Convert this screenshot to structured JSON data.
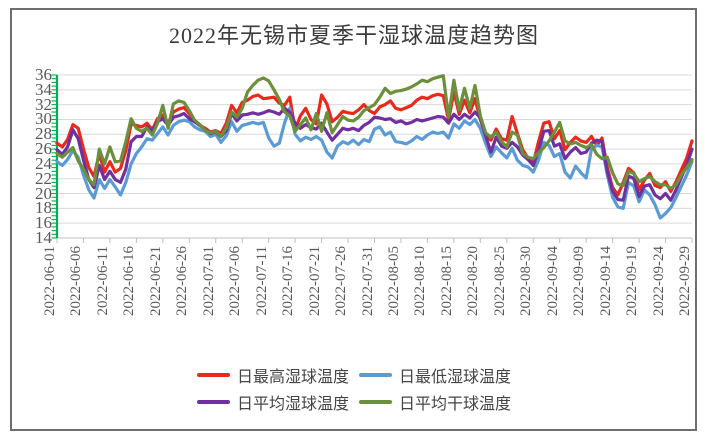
{
  "title": "2022年无锡市夏季干湿球温度趋势图",
  "chart_data": {
    "type": "line",
    "title": "2022年无锡市夏季干湿球温度趋势图",
    "xlabel": "",
    "ylabel": "",
    "ylim": [
      14,
      36
    ],
    "y_ticks": [
      14,
      16,
      18,
      20,
      22,
      24,
      26,
      28,
      30,
      32,
      34,
      36
    ],
    "grid": true,
    "legend_position": "bottom",
    "x_tick_labels": [
      "2022-06-01",
      "2022-06-06",
      "2022-06-11",
      "2022-06-16",
      "2022-06-21",
      "2022-06-26",
      "2022-07-01",
      "2022-07-06",
      "2022-07-11",
      "2022-07-16",
      "2022-07-21",
      "2022-07-26",
      "2022-07-31",
      "2022-08-05",
      "2022-08-10",
      "2022-08-15",
      "2022-08-20",
      "2022-08-25",
      "2022-08-30",
      "2022-09-04",
      "2022-09-09",
      "2022-09-14",
      "2022-09-19",
      "2022-09-24",
      "2022-09-29"
    ],
    "x_tick_step_days": 5,
    "n_points": 121,
    "axis_colors": {
      "y_axis": "#00b050",
      "grid": "#d9d9d9",
      "x_axis": "#bfbfbf",
      "tick_text": "#595959"
    },
    "series": [
      {
        "name": "日最高湿球温度",
        "color": "#e8291c",
        "values": [
          26.8,
          26.3,
          27.3,
          29.3,
          28.8,
          26.0,
          23.5,
          22.3,
          25.4,
          22.9,
          24.3,
          22.9,
          23.4,
          25.8,
          29.4,
          29.2,
          29.0,
          29.5,
          28.6,
          30.1,
          30.6,
          29.5,
          31.0,
          31.4,
          31.6,
          30.8,
          29.7,
          29.2,
          28.8,
          28.3,
          28.5,
          28.1,
          29.5,
          31.9,
          30.9,
          32.3,
          32.6,
          33.1,
          33.3,
          32.8,
          32.9,
          33.0,
          32.2,
          31.9,
          33.0,
          28.6,
          30.5,
          31.5,
          30.0,
          29.4,
          33.3,
          32.1,
          29.7,
          30.3,
          31.1,
          30.9,
          30.8,
          31.3,
          32.0,
          31.2,
          30.8,
          31.7,
          32.0,
          32.5,
          31.5,
          31.3,
          31.6,
          31.9,
          32.6,
          33.0,
          32.8,
          33.2,
          33.4,
          33.2,
          29.9,
          33.7,
          30.7,
          32.6,
          30.9,
          32.8,
          30.0,
          27.9,
          27.2,
          28.7,
          27.4,
          27.2,
          30.4,
          28.1,
          25.9,
          24.8,
          24.1,
          27.0,
          29.5,
          29.7,
          27.4,
          28.5,
          25.9,
          26.9,
          27.6,
          27.1,
          26.9,
          27.7,
          26.5,
          27.5,
          23.5,
          20.8,
          19.8,
          21.5,
          23.4,
          22.8,
          20.5,
          21.8,
          22.7,
          21.1,
          20.8,
          21.6,
          20.3,
          21.6,
          23.2,
          24.8,
          27.1
        ]
      },
      {
        "name": "日最低湿球温度",
        "color": "#5b9bd5",
        "values": [
          24.3,
          23.8,
          24.6,
          25.8,
          24.9,
          22.5,
          20.5,
          19.4,
          21.9,
          20.7,
          21.9,
          20.9,
          19.8,
          21.5,
          24.0,
          25.4,
          26.3,
          27.4,
          27.2,
          28.1,
          29.0,
          27.9,
          29.2,
          29.7,
          29.9,
          29.7,
          29.0,
          28.6,
          28.4,
          27.7,
          28.0,
          26.9,
          27.8,
          29.7,
          28.4,
          29.2,
          29.4,
          29.6,
          29.4,
          29.6,
          27.5,
          26.4,
          26.8,
          29.5,
          31.5,
          28.0,
          27.1,
          27.6,
          27.3,
          27.7,
          27.2,
          25.6,
          24.8,
          26.4,
          27.0,
          26.7,
          27.2,
          26.6,
          27.3,
          27.0,
          28.7,
          29.0,
          27.9,
          28.3,
          27.0,
          26.9,
          26.7,
          27.1,
          27.7,
          27.3,
          27.9,
          28.3,
          28.1,
          28.3,
          27.5,
          29.4,
          28.8,
          29.8,
          29.3,
          30.0,
          28.8,
          26.8,
          25.0,
          26.3,
          25.5,
          24.8,
          26.1,
          24.5,
          23.8,
          23.6,
          22.9,
          24.5,
          26.9,
          26.5,
          25.0,
          25.4,
          22.9,
          22.1,
          23.7,
          22.8,
          22.1,
          26.0,
          26.5,
          26.3,
          22.5,
          19.5,
          18.2,
          18.0,
          21.5,
          21.0,
          18.9,
          20.5,
          19.8,
          18.5,
          16.7,
          17.3,
          18.1,
          19.5,
          21.0,
          22.5,
          24.3
        ]
      },
      {
        "name": "日平均湿球温度",
        "color": "#7030a0",
        "values": [
          25.9,
          25.3,
          26.3,
          28.6,
          27.4,
          24.5,
          21.9,
          20.8,
          23.8,
          21.9,
          23.0,
          21.9,
          21.5,
          23.3,
          27.0,
          27.7,
          27.7,
          29.0,
          28.4,
          29.7,
          30.1,
          29.2,
          30.3,
          30.5,
          30.8,
          30.1,
          29.7,
          29.2,
          28.6,
          28.1,
          28.3,
          27.7,
          28.5,
          30.8,
          29.8,
          30.6,
          30.7,
          30.9,
          30.7,
          30.9,
          31.2,
          31.0,
          30.7,
          31.5,
          31.0,
          29.5,
          28.8,
          29.3,
          28.9,
          28.7,
          29.5,
          28.3,
          27.2,
          28.0,
          28.8,
          28.6,
          28.8,
          28.5,
          29.2,
          29.6,
          30.3,
          30.2,
          30.0,
          30.1,
          29.6,
          29.8,
          29.4,
          29.6,
          30.0,
          29.8,
          30.0,
          30.2,
          30.4,
          30.3,
          29.5,
          30.7,
          30.0,
          30.7,
          30.2,
          31.0,
          30.2,
          27.8,
          25.6,
          27.6,
          26.4,
          26.1,
          26.9,
          26.3,
          25.2,
          24.6,
          23.8,
          25.8,
          28.4,
          28.5,
          26.4,
          26.7,
          24.7,
          25.6,
          26.2,
          25.4,
          25.6,
          26.8,
          27.2,
          27.0,
          23.0,
          20.3,
          19.2,
          19.1,
          22.4,
          22.0,
          19.6,
          21.0,
          21.2,
          19.8,
          19.3,
          20.0,
          19.1,
          20.5,
          22.2,
          23.8,
          26.0
        ]
      },
      {
        "name": "日平均干球温度",
        "color": "#6c8f3b",
        "values": [
          25.4,
          24.9,
          25.6,
          26.2,
          24.4,
          23.3,
          21.9,
          21.2,
          26.0,
          24.0,
          26.3,
          24.3,
          24.4,
          27.0,
          30.1,
          28.8,
          28.4,
          28.8,
          27.9,
          29.5,
          31.9,
          28.8,
          32.1,
          32.5,
          32.3,
          31.2,
          29.9,
          29.3,
          28.5,
          28.2,
          28.4,
          27.7,
          28.9,
          31.0,
          30.3,
          31.5,
          33.7,
          34.6,
          35.3,
          35.6,
          35.2,
          34.0,
          32.7,
          31.0,
          30.5,
          28.4,
          29.3,
          30.2,
          28.6,
          30.8,
          28.4,
          30.9,
          28.2,
          29.3,
          30.4,
          29.9,
          29.8,
          30.3,
          31.2,
          31.6,
          32.0,
          33.0,
          34.2,
          33.5,
          33.8,
          33.9,
          34.1,
          34.4,
          34.8,
          35.3,
          35.1,
          35.5,
          35.7,
          35.9,
          30.3,
          35.3,
          31.3,
          34.2,
          31.5,
          34.6,
          30.5,
          28.2,
          27.6,
          28.3,
          27.0,
          26.3,
          28.3,
          27.9,
          25.4,
          24.9,
          24.7,
          25.5,
          26.2,
          27.1,
          28.3,
          29.6,
          27.1,
          26.7,
          26.9,
          26.5,
          26.2,
          26.6,
          25.3,
          24.7,
          24.9,
          22.8,
          21.3,
          21.1,
          23.0,
          22.7,
          21.6,
          22.0,
          22.3,
          21.6,
          21.2,
          21.2,
          20.7,
          21.2,
          22.5,
          23.5,
          24.6
        ]
      }
    ],
    "legend_rows": [
      [
        0,
        1
      ],
      [
        2,
        3
      ]
    ]
  }
}
